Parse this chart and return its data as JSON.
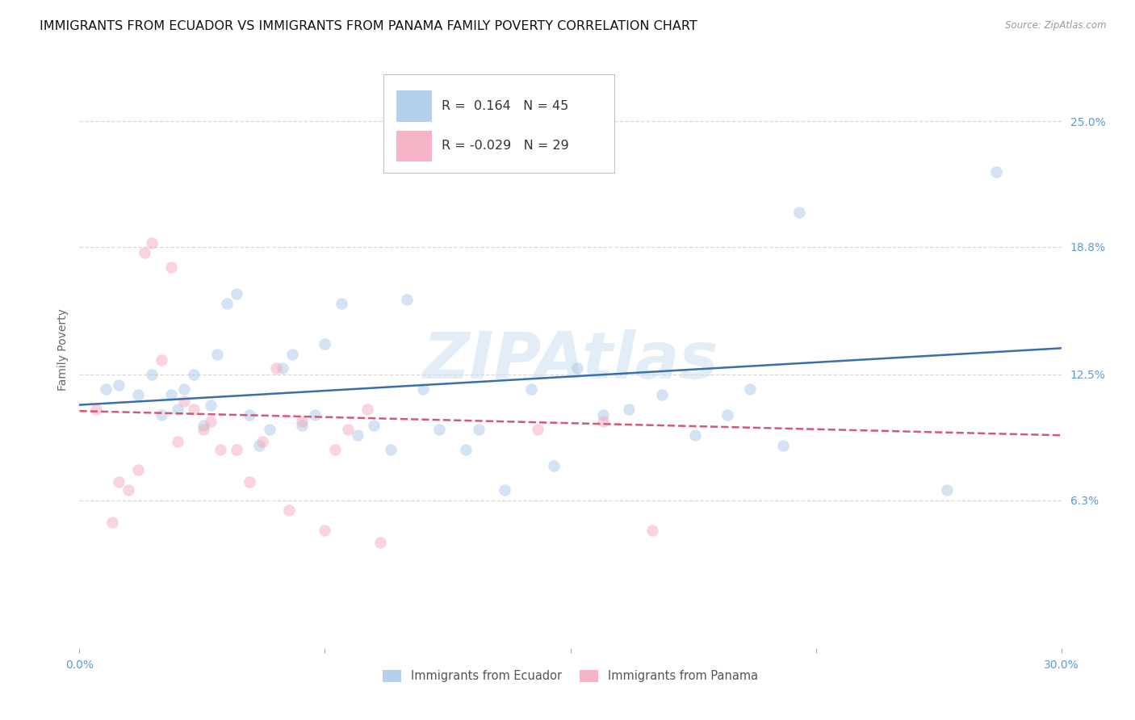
{
  "title": "IMMIGRANTS FROM ECUADOR VS IMMIGRANTS FROM PANAMA FAMILY POVERTY CORRELATION CHART",
  "source": "Source: ZipAtlas.com",
  "ylabel": "Family Poverty",
  "watermark": "ZIPAtlas",
  "xlim": [
    0.0,
    0.3
  ],
  "ylim": [
    -0.01,
    0.285
  ],
  "yticks": [
    0.063,
    0.125,
    0.188,
    0.25
  ],
  "ytick_labels": [
    "6.3%",
    "12.5%",
    "18.8%",
    "25.0%"
  ],
  "xticks": [
    0.0,
    0.075,
    0.15,
    0.225,
    0.3
  ],
  "xtick_labels": [
    "0.0%",
    "",
    "",
    "",
    "30.0%"
  ],
  "ecuador_R": 0.164,
  "ecuador_N": 45,
  "panama_R": -0.029,
  "panama_N": 29,
  "ecuador_color": "#a8c8e8",
  "panama_color": "#f4a8bc",
  "ecuador_line_color": "#3a6fac",
  "panama_line_color": "#d45878",
  "ecuador_line_x0": 0.0,
  "ecuador_line_y0": 0.11,
  "ecuador_line_x1": 0.3,
  "ecuador_line_y1": 0.138,
  "panama_line_x0": 0.0,
  "panama_line_y0": 0.107,
  "panama_line_x1": 0.3,
  "panama_line_y1": 0.095,
  "ecuador_scatter_x": [
    0.008,
    0.012,
    0.018,
    0.022,
    0.025,
    0.028,
    0.03,
    0.032,
    0.035,
    0.038,
    0.04,
    0.042,
    0.045,
    0.048,
    0.052,
    0.055,
    0.058,
    0.062,
    0.065,
    0.068,
    0.072,
    0.075,
    0.08,
    0.085,
    0.09,
    0.095,
    0.1,
    0.105,
    0.11,
    0.118,
    0.122,
    0.13,
    0.138,
    0.145,
    0.152,
    0.16,
    0.168,
    0.178,
    0.188,
    0.198,
    0.205,
    0.215,
    0.22,
    0.265,
    0.28
  ],
  "ecuador_scatter_y": [
    0.118,
    0.12,
    0.115,
    0.125,
    0.105,
    0.115,
    0.108,
    0.118,
    0.125,
    0.1,
    0.11,
    0.135,
    0.16,
    0.165,
    0.105,
    0.09,
    0.098,
    0.128,
    0.135,
    0.1,
    0.105,
    0.14,
    0.16,
    0.095,
    0.1,
    0.088,
    0.162,
    0.118,
    0.098,
    0.088,
    0.098,
    0.068,
    0.118,
    0.08,
    0.128,
    0.105,
    0.108,
    0.115,
    0.095,
    0.105,
    0.118,
    0.09,
    0.205,
    0.068,
    0.225
  ],
  "panama_scatter_x": [
    0.005,
    0.01,
    0.012,
    0.015,
    0.018,
    0.02,
    0.022,
    0.025,
    0.028,
    0.03,
    0.032,
    0.035,
    0.038,
    0.04,
    0.043,
    0.048,
    0.052,
    0.056,
    0.06,
    0.064,
    0.068,
    0.075,
    0.078,
    0.082,
    0.088,
    0.092,
    0.14,
    0.16,
    0.175
  ],
  "panama_scatter_y": [
    0.108,
    0.052,
    0.072,
    0.068,
    0.078,
    0.185,
    0.19,
    0.132,
    0.178,
    0.092,
    0.112,
    0.108,
    0.098,
    0.102,
    0.088,
    0.088,
    0.072,
    0.092,
    0.128,
    0.058,
    0.102,
    0.048,
    0.088,
    0.098,
    0.108,
    0.042,
    0.098,
    0.102,
    0.048
  ],
  "background_color": "#ffffff",
  "grid_color": "#d8d8d8",
  "title_fontsize": 11.5,
  "axis_label_fontsize": 10,
  "tick_label_color": "#5b9bd5",
  "tick_label_fontsize": 10,
  "scatter_size": 110,
  "scatter_alpha": 0.5,
  "line_width": 1.8
}
